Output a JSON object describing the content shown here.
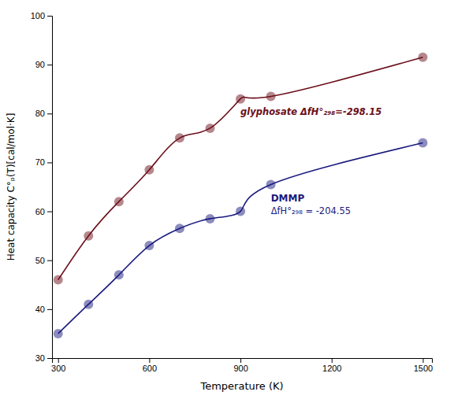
{
  "chart_data": {
    "type": "line",
    "x": [
      300,
      400,
      500,
      600,
      700,
      800,
      900,
      1000,
      1500
    ],
    "series": [
      {
        "color": "#6b0f1a",
        "marker": "circle",
        "values": [
          46.0,
          55.0,
          62.0,
          68.5,
          75.0,
          77.0,
          83.0,
          83.5,
          91.5
        ]
      },
      {
        "color": "#1a1a7e",
        "marker": "circle",
        "values": [
          35.0,
          41.0,
          47.0,
          53.0,
          56.5,
          58.5,
          60.0,
          65.5,
          74.0
        ]
      }
    ],
    "xlabel": "Temperature (K)",
    "ylabel": "Heat capacity C°ₚ(T)[cal/mol·K]",
    "annotations": [
      "glyphosate ΔfH°₂₉₈=-298.15",
      "DMMP",
      "ΔfH°₂₉₈ = -204.55"
    ],
    "xlim": [
      280,
      1530
    ],
    "ylim": [
      30,
      100
    ],
    "xticks": [
      300,
      600,
      900,
      1200,
      1500
    ],
    "yticks": [
      30,
      40,
      50,
      60,
      70,
      80,
      90,
      100
    ],
    "grid": false
  }
}
